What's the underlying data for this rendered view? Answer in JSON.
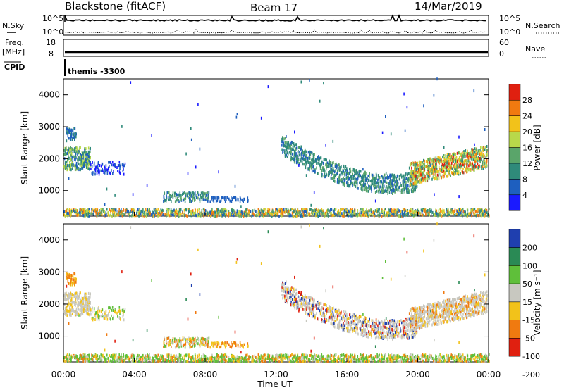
{
  "header": {
    "station": "Blackstone (fitACF)",
    "beam": "Beam 17",
    "date": "14/Mar/2019"
  },
  "top_panel": {
    "left_label": "N.Sky",
    "right_label": "N.Search",
    "left_ticks": [
      "10^5",
      "10^0"
    ],
    "right_ticks": [
      "10^5",
      "10^0"
    ]
  },
  "freq_panel": {
    "left_label_line1": "Freq.",
    "left_label_line2": "[MHz]",
    "right_label": "Nave",
    "left_ticks": [
      "18",
      "8"
    ],
    "right_ticks": [
      "60",
      "0"
    ]
  },
  "cpid": {
    "label": "CPID",
    "value": "themis -3300"
  },
  "chart_data": [
    {
      "type": "heatmap",
      "quantity": "Power",
      "ylabel": "Slant Range [km]",
      "ylim": [
        200,
        4500
      ],
      "yticks": [
        "1000",
        "2000",
        "3000",
        "4000"
      ],
      "colorbar_label": "Power [dB]",
      "colorbar_ticks": [
        "4",
        "8",
        "12",
        "16",
        "20",
        "24",
        "28"
      ],
      "colors": [
        "#1a1aff",
        "#1e5fbf",
        "#2f8a7a",
        "#5aa56a",
        "#b8d84a",
        "#f2c21a",
        "#f07a10",
        "#e02010"
      ]
    },
    {
      "type": "heatmap",
      "quantity": "Velocity",
      "ylabel": "Slant Range [km]",
      "ylim": [
        200,
        4500
      ],
      "yticks": [
        "1000",
        "2000",
        "3000",
        "4000"
      ],
      "colorbar_label": "Velocity [m s⁻¹]",
      "colorbar_ticks": [
        "200",
        "100",
        "50",
        "15",
        "-15",
        "-50",
        "-100",
        "-200"
      ],
      "colors": [
        "#1f3faf",
        "#2a8a55",
        "#5fbf3a",
        "#c8c8c0",
        "#f2c21a",
        "#f07a10",
        "#e02010"
      ]
    }
  ],
  "xaxis": {
    "label": "Time UT",
    "ticks": [
      "00:00",
      "04:00",
      "08:00",
      "12:00",
      "16:00",
      "20:00",
      "00:00"
    ]
  }
}
